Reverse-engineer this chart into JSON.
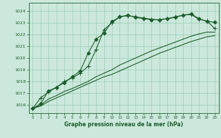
{
  "title": "Graphe pression niveau de la mer (hPa)",
  "bg_color": "#cce8dc",
  "grid_color": "#99ccb3",
  "line_color": "#1a5c2a",
  "x_ticks": [
    0,
    1,
    2,
    3,
    4,
    5,
    6,
    7,
    8,
    9,
    10,
    11,
    12,
    13,
    14,
    15,
    16,
    17,
    18,
    19,
    20,
    21,
    22,
    23
  ],
  "ylim": [
    1015.3,
    1024.7
  ],
  "y_ticks": [
    1016,
    1017,
    1018,
    1019,
    1020,
    1021,
    1022,
    1023,
    1024
  ],
  "series": [
    {
      "x": [
        0,
        1,
        2,
        3,
        4,
        5,
        6,
        7,
        8,
        9,
        10,
        11,
        12,
        13,
        14,
        15,
        16,
        17,
        18,
        19,
        20,
        21,
        22,
        23
      ],
      "y": [
        1015.7,
        1016.1,
        1017.2,
        1017.5,
        1017.9,
        1018.4,
        1018.9,
        1020.4,
        1021.6,
        1022.1,
        1023.1,
        1023.5,
        1023.65,
        1023.45,
        1023.35,
        1023.25,
        1023.25,
        1023.35,
        1023.45,
        1023.65,
        1023.75,
        1023.35,
        1023.1,
        1023.05
      ],
      "marker": "D",
      "markersize": 2.5
    },
    {
      "x": [
        0,
        1,
        2,
        3,
        4,
        5,
        6,
        7,
        8,
        9,
        10,
        11,
        12,
        13,
        14,
        15,
        16,
        17,
        18,
        19,
        20,
        21,
        22,
        23
      ],
      "y": [
        1015.7,
        1016.6,
        1017.1,
        1017.5,
        1018.0,
        1018.3,
        1018.7,
        1019.3,
        1020.7,
        1022.4,
        1023.0,
        1023.5,
        1023.6,
        1023.5,
        1023.4,
        1023.3,
        1023.25,
        1023.35,
        1023.5,
        1023.65,
        1023.7,
        1023.3,
        1023.15,
        1022.5
      ],
      "marker": "+",
      "markersize": 4.5
    },
    {
      "x": [
        0,
        1,
        2,
        3,
        4,
        5,
        6,
        7,
        8,
        9,
        10,
        11,
        12,
        13,
        14,
        15,
        16,
        17,
        18,
        19,
        20,
        21,
        22,
        23
      ],
      "y": [
        1015.7,
        1016.0,
        1016.5,
        1016.8,
        1017.15,
        1017.4,
        1017.7,
        1018.0,
        1018.4,
        1018.7,
        1019.0,
        1019.4,
        1019.7,
        1020.0,
        1020.3,
        1020.6,
        1020.85,
        1021.1,
        1021.35,
        1021.6,
        1021.85,
        1022.05,
        1022.2,
        1022.2
      ],
      "marker": null,
      "markersize": 0
    },
    {
      "x": [
        0,
        1,
        2,
        3,
        4,
        5,
        6,
        7,
        8,
        9,
        10,
        11,
        12,
        13,
        14,
        15,
        16,
        17,
        18,
        19,
        20,
        21,
        22,
        23
      ],
      "y": [
        1015.7,
        1015.9,
        1016.3,
        1016.6,
        1016.9,
        1017.2,
        1017.5,
        1017.8,
        1018.1,
        1018.4,
        1018.6,
        1018.9,
        1019.2,
        1019.5,
        1019.8,
        1020.1,
        1020.4,
        1020.65,
        1020.9,
        1021.15,
        1021.4,
        1021.6,
        1021.8,
        1021.9
      ],
      "marker": null,
      "markersize": 0
    }
  ]
}
